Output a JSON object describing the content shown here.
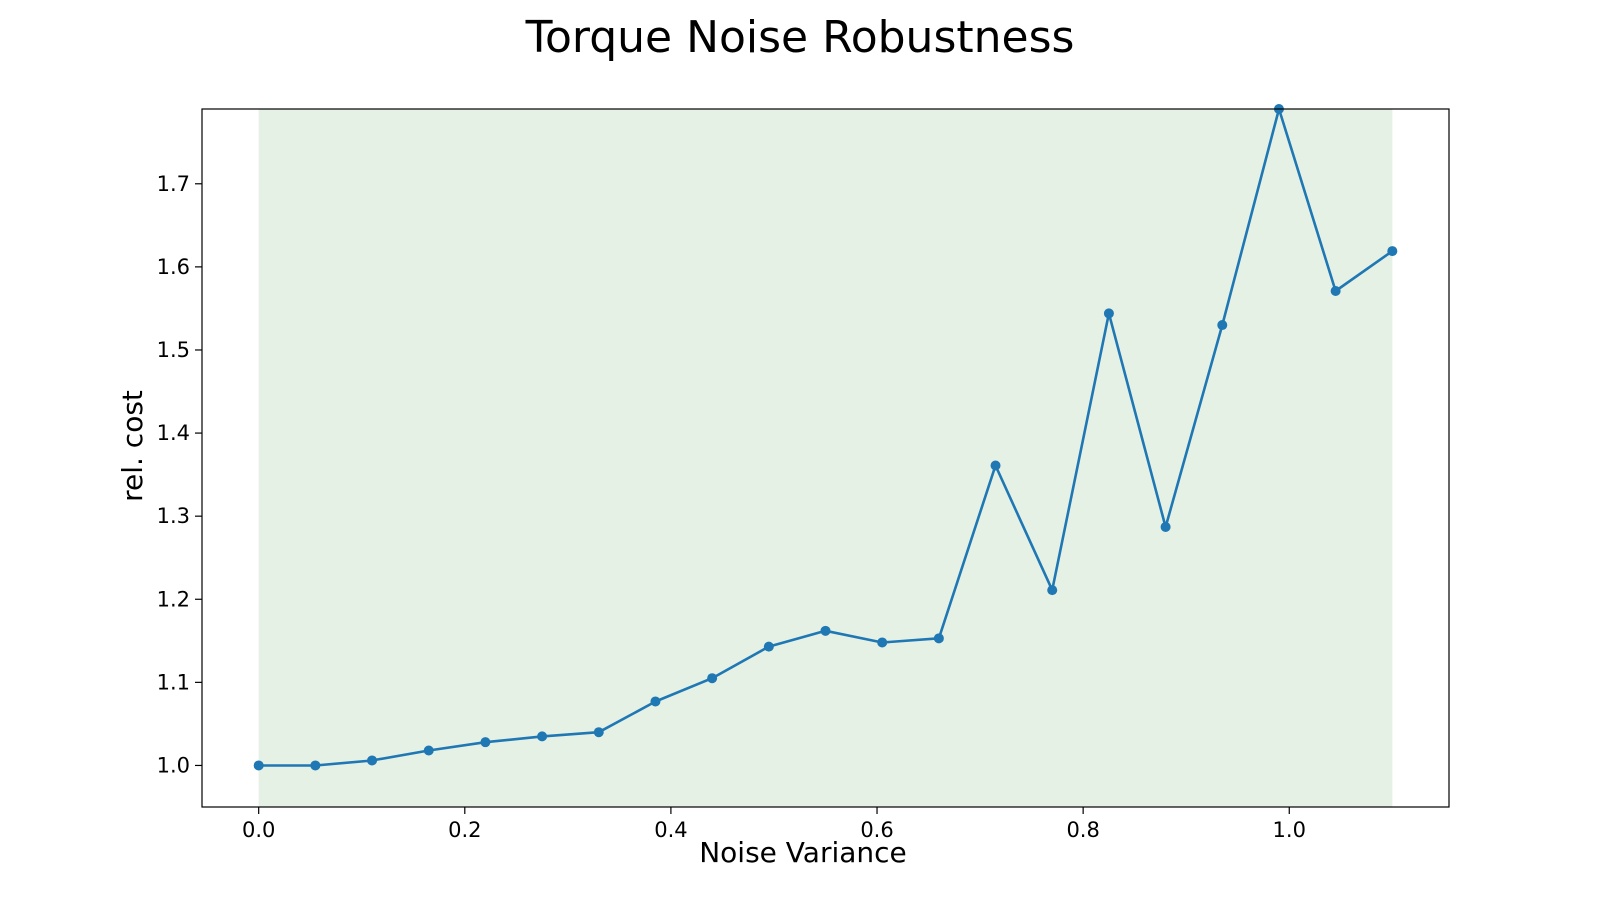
{
  "chart_data": {
    "type": "line",
    "title": "Torque Noise Robustness",
    "xlabel": "Noise Variance",
    "ylabel": "rel. cost",
    "xlim": [
      -0.055,
      1.155
    ],
    "ylim": [
      0.95,
      1.79
    ],
    "xticks": [
      0.0,
      0.2,
      0.4,
      0.6,
      0.8,
      1.0
    ],
    "xtick_labels": [
      "0.0",
      "0.2",
      "0.4",
      "0.6",
      "0.8",
      "1.0"
    ],
    "yticks": [
      1.0,
      1.1,
      1.2,
      1.3,
      1.4,
      1.5,
      1.6,
      1.7
    ],
    "ytick_labels": [
      "1.0",
      "1.1",
      "1.2",
      "1.3",
      "1.4",
      "1.5",
      "1.6",
      "1.7"
    ],
    "shaded_region": {
      "x_start": 0.0,
      "x_end": 1.1,
      "color": "#e5f1e5"
    },
    "grid": false,
    "legend": "none",
    "series": [
      {
        "color": "#1f77b4",
        "marker": "circle",
        "x": [
          0.0,
          0.055,
          0.11,
          0.165,
          0.22,
          0.275,
          0.33,
          0.385,
          0.44,
          0.495,
          0.55,
          0.605,
          0.66,
          0.715,
          0.77,
          0.825,
          0.88,
          0.935,
          0.99,
          1.045,
          1.1
        ],
        "y": [
          1.0,
          1.0,
          1.006,
          1.018,
          1.028,
          1.035,
          1.04,
          1.077,
          1.105,
          1.143,
          1.162,
          1.148,
          1.153,
          1.361,
          1.211,
          1.544,
          1.287,
          1.53,
          1.79,
          1.571,
          1.619
        ]
      }
    ]
  }
}
